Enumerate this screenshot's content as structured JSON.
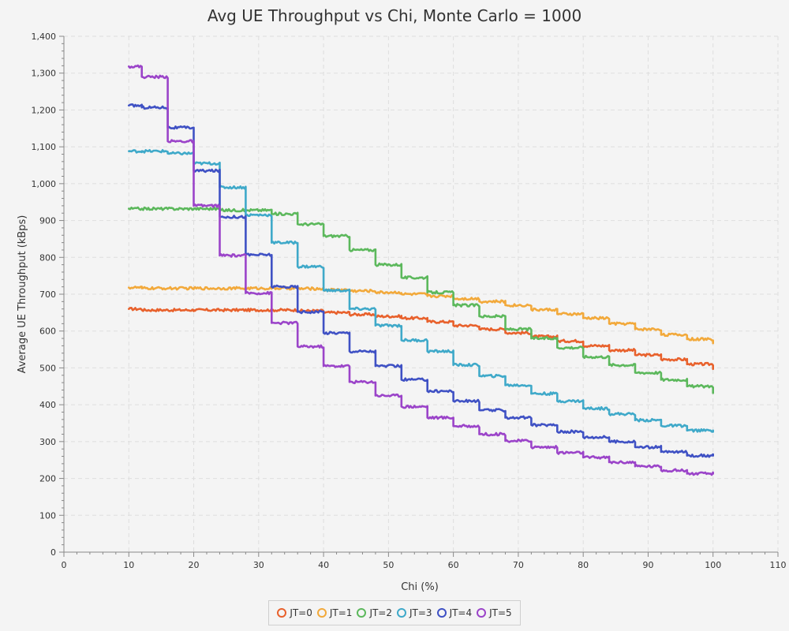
{
  "chart_data": {
    "type": "line",
    "title": "Avg UE Throughput vs Chi, Monte Carlo = 1000",
    "xlabel": "Chi (%)",
    "ylabel": "Average UE Throughput (kBps)",
    "xlim": [
      0,
      110
    ],
    "ylim": [
      0,
      1400
    ],
    "x_ticks": [
      "0",
      "10",
      "20",
      "30",
      "40",
      "50",
      "60",
      "70",
      "80",
      "90",
      "100",
      "110"
    ],
    "y_ticks": [
      "0",
      "100",
      "200",
      "300",
      "400",
      "500",
      "600",
      "700",
      "800",
      "900",
      "1,000",
      "1,100",
      "1,200",
      "1,300",
      "1,400"
    ],
    "grid": true,
    "legend": "bottom",
    "x_steps": [
      10,
      12,
      16,
      20,
      24,
      28,
      32,
      36,
      40,
      44,
      48,
      52,
      56,
      60,
      64,
      68,
      72,
      76,
      80,
      84,
      88,
      92,
      96,
      100
    ],
    "series": [
      {
        "name": "JT=0",
        "color": "#e8612c",
        "values": [
          660,
          657,
          657,
          657,
          657,
          657,
          657,
          655,
          650,
          645,
          640,
          635,
          625,
          615,
          605,
          595,
          585,
          573,
          560,
          548,
          535,
          523,
          510,
          497
        ]
      },
      {
        "name": "JT=1",
        "color": "#f2a93b",
        "values": [
          718,
          716,
          716,
          716,
          716,
          716,
          716,
          715,
          712,
          709,
          705,
          700,
          695,
          688,
          680,
          670,
          658,
          646,
          635,
          620,
          605,
          590,
          578,
          567
        ]
      },
      {
        "name": "JT=2",
        "color": "#5cb85c",
        "values": [
          932,
          932,
          932,
          932,
          928,
          928,
          918,
          890,
          858,
          820,
          780,
          745,
          705,
          670,
          640,
          605,
          580,
          555,
          530,
          508,
          487,
          468,
          450,
          432
        ]
      },
      {
        "name": "JT=3",
        "color": "#3fa9c9",
        "values": [
          1088,
          1088,
          1082,
          1055,
          990,
          915,
          840,
          775,
          710,
          660,
          615,
          575,
          545,
          508,
          478,
          453,
          430,
          410,
          390,
          375,
          358,
          343,
          330,
          330
        ]
      },
      {
        "name": "JT=4",
        "color": "#3f51c4",
        "values": [
          1212,
          1207,
          1152,
          1035,
          910,
          807,
          720,
          652,
          595,
          545,
          505,
          468,
          437,
          410,
          385,
          365,
          345,
          327,
          312,
          300,
          285,
          272,
          262,
          262
        ]
      },
      {
        "name": "JT=5",
        "color": "#9b44c9",
        "values": [
          1318,
          1290,
          1115,
          940,
          805,
          703,
          622,
          558,
          505,
          462,
          425,
          395,
          365,
          342,
          320,
          302,
          285,
          270,
          257,
          244,
          233,
          222,
          213,
          213
        ]
      }
    ]
  }
}
